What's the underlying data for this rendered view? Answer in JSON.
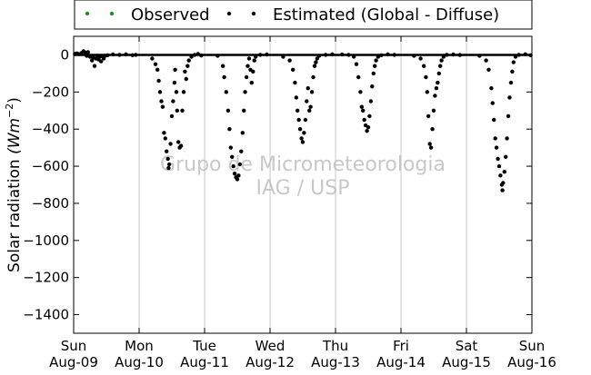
{
  "chart_data": {
    "type": "scatter",
    "title": "",
    "ylabel": "Solar radiation",
    "ylabel_unit": "(Wm",
    "ylabel_exp": "−2",
    "ylabel_close": ")",
    "xlabel": "",
    "ylim": [
      -1500,
      100
    ],
    "xlim": [
      0,
      7
    ],
    "grid": "vertical",
    "legend_position": "top",
    "watermark": [
      "Grupo de Micrometeorologia",
      "IAG / USP"
    ],
    "y_ticks": [
      0,
      -200,
      -400,
      -600,
      -800,
      -1000,
      -1200,
      -1400
    ],
    "x_ticks": [
      {
        "day": "Sun",
        "date": "Aug-09",
        "x": 0
      },
      {
        "day": "Mon",
        "date": "Aug-10",
        "x": 1
      },
      {
        "day": "Tue",
        "date": "Aug-11",
        "x": 2
      },
      {
        "day": "Wed",
        "date": "Aug-12",
        "x": 3
      },
      {
        "day": "Thu",
        "date": "Aug-13",
        "x": 4
      },
      {
        "day": "Fri",
        "date": "Aug-14",
        "x": 5
      },
      {
        "day": "Sat",
        "date": "Aug-15",
        "x": 6
      },
      {
        "day": "Sun",
        "date": "Aug-16",
        "x": 7
      }
    ],
    "series": [
      {
        "name": "Observed",
        "color": "#228b22",
        "points": []
      },
      {
        "name": "Estimated (Global - Diffuse)",
        "color": "#000000",
        "points": [
          [
            0.02,
            5
          ],
          [
            0.05,
            8
          ],
          [
            0.08,
            4
          ],
          [
            0.12,
            10
          ],
          [
            0.15,
            20
          ],
          [
            0.18,
            12
          ],
          [
            0.2,
            -5
          ],
          [
            0.22,
            15
          ],
          [
            0.25,
            -10
          ],
          [
            0.28,
            -30
          ],
          [
            0.3,
            -15
          ],
          [
            0.32,
            -60
          ],
          [
            0.34,
            -20
          ],
          [
            0.36,
            -5
          ],
          [
            0.38,
            -25
          ],
          [
            0.4,
            -10
          ],
          [
            0.42,
            -35
          ],
          [
            0.44,
            -8
          ],
          [
            0.46,
            -20
          ],
          [
            0.48,
            -5
          ],
          [
            0.52,
            -2
          ],
          [
            0.6,
            2
          ],
          [
            0.7,
            0
          ],
          [
            0.8,
            3
          ],
          [
            0.9,
            -2
          ],
          [
            0.95,
            0
          ],
          [
            1.2,
            -20
          ],
          [
            1.25,
            -50
          ],
          [
            1.28,
            -80
          ],
          [
            1.3,
            -140
          ],
          [
            1.32,
            -200
          ],
          [
            1.34,
            -250
          ],
          [
            1.36,
            -280
          ],
          [
            1.38,
            -420
          ],
          [
            1.4,
            -450
          ],
          [
            1.42,
            -520
          ],
          [
            1.44,
            -560
          ],
          [
            1.45,
            -610
          ],
          [
            1.46,
            -590
          ],
          [
            1.48,
            -480
          ],
          [
            1.5,
            -330
          ],
          [
            1.52,
            -250
          ],
          [
            1.54,
            -150
          ],
          [
            1.55,
            -80
          ],
          [
            1.57,
            -200
          ],
          [
            1.58,
            -300
          ],
          [
            1.6,
            -470
          ],
          [
            1.62,
            -500
          ],
          [
            1.64,
            -490
          ],
          [
            1.66,
            -300
          ],
          [
            1.68,
            -200
          ],
          [
            1.7,
            -90
          ],
          [
            1.72,
            -130
          ],
          [
            1.74,
            -60
          ],
          [
            1.76,
            -30
          ],
          [
            1.8,
            -10
          ],
          [
            1.85,
            0
          ],
          [
            1.9,
            5
          ],
          [
            1.95,
            -3
          ],
          [
            2.2,
            -5
          ],
          [
            2.28,
            -60
          ],
          [
            2.3,
            -120
          ],
          [
            2.33,
            -200
          ],
          [
            2.36,
            -300
          ],
          [
            2.38,
            -400
          ],
          [
            2.4,
            -500
          ],
          [
            2.42,
            -550
          ],
          [
            2.44,
            -600
          ],
          [
            2.46,
            -640
          ],
          [
            2.48,
            -660
          ],
          [
            2.5,
            -670
          ],
          [
            2.52,
            -650
          ],
          [
            2.54,
            -590
          ],
          [
            2.56,
            -520
          ],
          [
            2.58,
            -420
          ],
          [
            2.6,
            -300
          ],
          [
            2.62,
            -200
          ],
          [
            2.64,
            -120
          ],
          [
            2.66,
            -60
          ],
          [
            2.68,
            -20
          ],
          [
            2.7,
            -80
          ],
          [
            2.72,
            -150
          ],
          [
            2.74,
            -90
          ],
          [
            2.76,
            -30
          ],
          [
            2.78,
            -10
          ],
          [
            2.85,
            0
          ],
          [
            2.95,
            2
          ],
          [
            3.2,
            -10
          ],
          [
            3.3,
            -30
          ],
          [
            3.35,
            -80
          ],
          [
            3.38,
            -150
          ],
          [
            3.4,
            -230
          ],
          [
            3.42,
            -300
          ],
          [
            3.44,
            -350
          ],
          [
            3.46,
            -400
          ],
          [
            3.48,
            -450
          ],
          [
            3.5,
            -470
          ],
          [
            3.52,
            -420
          ],
          [
            3.54,
            -350
          ],
          [
            3.56,
            -250
          ],
          [
            3.58,
            -180
          ],
          [
            3.6,
            -300
          ],
          [
            3.62,
            -280
          ],
          [
            3.64,
            -200
          ],
          [
            3.66,
            -120
          ],
          [
            3.68,
            -60
          ],
          [
            3.7,
            -40
          ],
          [
            3.72,
            -20
          ],
          [
            3.75,
            -5
          ],
          [
            3.85,
            0
          ],
          [
            3.95,
            3
          ],
          [
            4.1,
            2
          ],
          [
            4.2,
            0
          ],
          [
            4.28,
            -10
          ],
          [
            4.32,
            -50
          ],
          [
            4.35,
            -120
          ],
          [
            4.38,
            -200
          ],
          [
            4.4,
            -280
          ],
          [
            4.42,
            -300
          ],
          [
            4.44,
            -350
          ],
          [
            4.46,
            -380
          ],
          [
            4.48,
            -410
          ],
          [
            4.5,
            -390
          ],
          [
            4.52,
            -330
          ],
          [
            4.54,
            -250
          ],
          [
            4.56,
            -170
          ],
          [
            4.58,
            -100
          ],
          [
            4.6,
            -60
          ],
          [
            4.62,
            -30
          ],
          [
            4.65,
            -10
          ],
          [
            4.7,
            -2
          ],
          [
            4.8,
            3
          ],
          [
            4.9,
            0
          ],
          [
            5.2,
            -5
          ],
          [
            5.3,
            -20
          ],
          [
            5.35,
            -60
          ],
          [
            5.38,
            -120
          ],
          [
            5.4,
            -200
          ],
          [
            5.42,
            -330
          ],
          [
            5.44,
            -480
          ],
          [
            5.46,
            -500
          ],
          [
            5.48,
            -400
          ],
          [
            5.5,
            -300
          ],
          [
            5.52,
            -220
          ],
          [
            5.54,
            -180
          ],
          [
            5.56,
            -150
          ],
          [
            5.58,
            -100
          ],
          [
            5.6,
            -60
          ],
          [
            5.62,
            -30
          ],
          [
            5.65,
            -10
          ],
          [
            5.7,
            0
          ],
          [
            5.8,
            2
          ],
          [
            5.9,
            -1
          ],
          [
            6.2,
            -5
          ],
          [
            6.3,
            -30
          ],
          [
            6.34,
            -80
          ],
          [
            6.38,
            -180
          ],
          [
            6.4,
            -260
          ],
          [
            6.42,
            -350
          ],
          [
            6.44,
            -450
          ],
          [
            6.46,
            -500
          ],
          [
            6.48,
            -560
          ],
          [
            6.5,
            -600
          ],
          [
            6.52,
            -650
          ],
          [
            6.54,
            -700
          ],
          [
            6.55,
            -730
          ],
          [
            6.56,
            -690
          ],
          [
            6.58,
            -630
          ],
          [
            6.6,
            -550
          ],
          [
            6.62,
            -450
          ],
          [
            6.64,
            -330
          ],
          [
            6.66,
            -230
          ],
          [
            6.68,
            -150
          ],
          [
            6.7,
            -90
          ],
          [
            6.72,
            -40
          ],
          [
            6.75,
            -10
          ],
          [
            6.8,
            0
          ],
          [
            6.9,
            3
          ],
          [
            6.98,
            -2
          ]
        ]
      }
    ]
  }
}
